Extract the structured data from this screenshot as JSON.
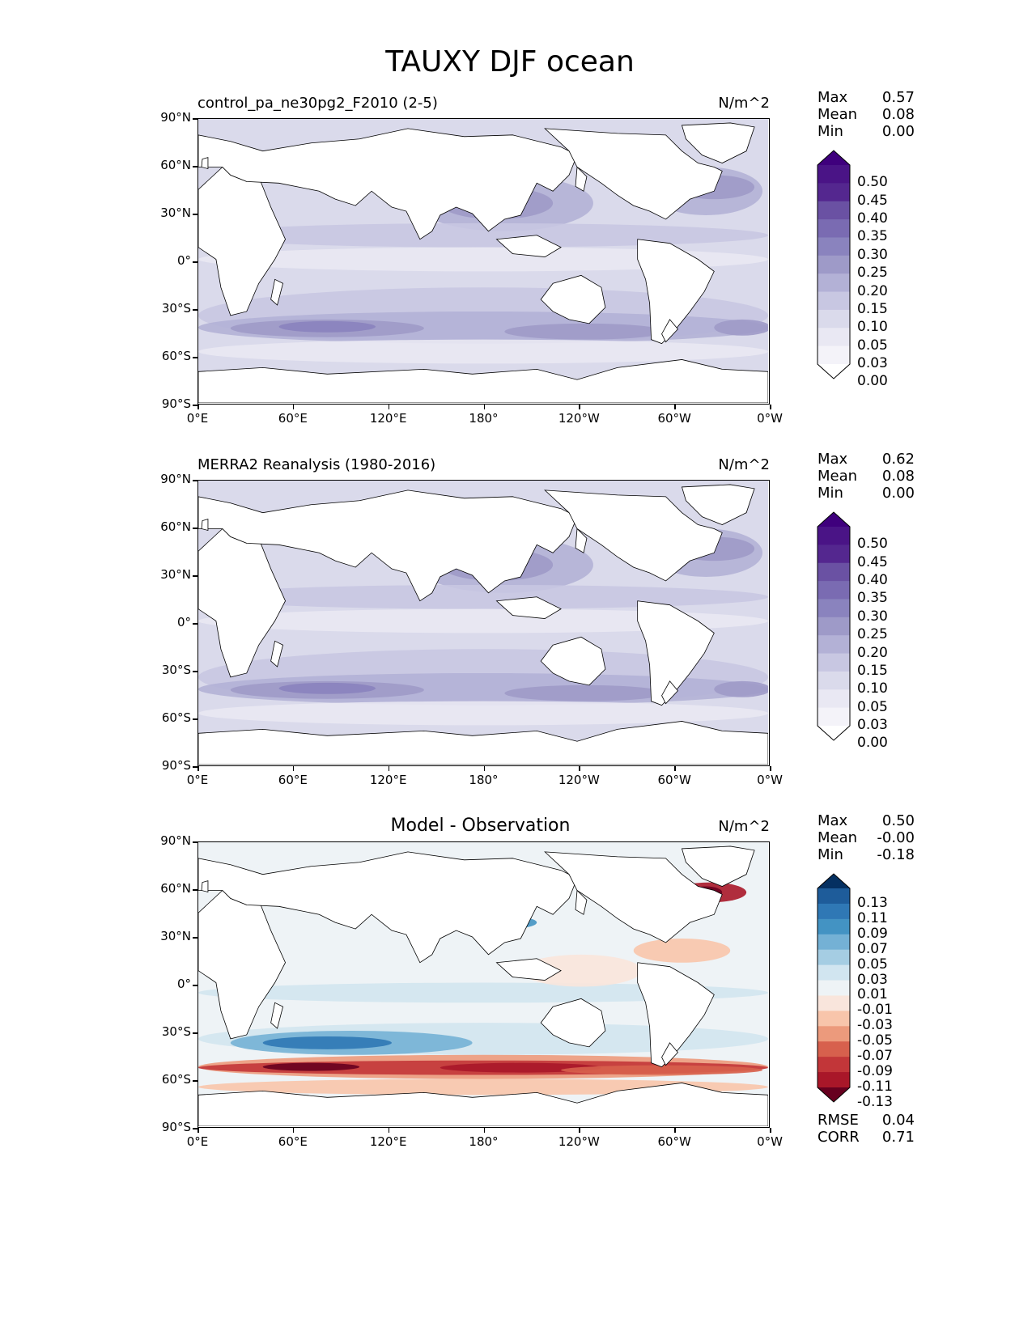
{
  "figure": {
    "title": "TAUXY DJF ocean"
  },
  "axes": {
    "y_ticks": [
      "90°N",
      "60°N",
      "30°N",
      "0°",
      "30°S",
      "60°S",
      "90°S"
    ],
    "x_ticks": [
      "0°E",
      "60°E",
      "120°E",
      "180°",
      "120°W",
      "60°W",
      "0°W"
    ]
  },
  "panels": [
    {
      "title": "control_pa_ne30pg2_F2010 (2-5)",
      "units": "N/m^2",
      "stats": [
        {
          "label": "Max",
          "value": "0.57"
        },
        {
          "label": "Mean",
          "value": "0.08"
        },
        {
          "label": "Min",
          "value": "0.00"
        }
      ],
      "colorbar": {
        "labels": [
          "0.50",
          "0.45",
          "0.40",
          "0.35",
          "0.30",
          "0.25",
          "0.20",
          "0.15",
          "0.10",
          "0.05",
          "0.03",
          "0.00"
        ],
        "colors": [
          "#3f007d",
          "#4a1486",
          "#54278f",
          "#6a51a3",
          "#7a6bb2",
          "#8a83be",
          "#9e9ac8",
          "#b3b1d6",
          "#c8c7e2",
          "#dadaeb",
          "#e9e8f3",
          "#f4f3f9",
          "#ffffff"
        ]
      },
      "colormap": "purples"
    },
    {
      "title": "MERRA2 Reanalysis (1980-2016)",
      "units": "N/m^2",
      "stats": [
        {
          "label": "Max",
          "value": "0.62"
        },
        {
          "label": "Mean",
          "value": "0.08"
        },
        {
          "label": "Min",
          "value": "0.00"
        }
      ],
      "colorbar": {
        "labels": [
          "0.50",
          "0.45",
          "0.40",
          "0.35",
          "0.30",
          "0.25",
          "0.20",
          "0.15",
          "0.10",
          "0.05",
          "0.03",
          "0.00"
        ],
        "colors": [
          "#3f007d",
          "#4a1486",
          "#54278f",
          "#6a51a3",
          "#7a6bb2",
          "#8a83be",
          "#9e9ac8",
          "#b3b1d6",
          "#c8c7e2",
          "#dadaeb",
          "#e9e8f3",
          "#f4f3f9",
          "#ffffff"
        ]
      },
      "colormap": "purples"
    },
    {
      "title": "Model - Observation",
      "units": "N/m^2",
      "stats": [
        {
          "label": "Max",
          "value": "0.50"
        },
        {
          "label": "Mean",
          "value": "-0.00"
        },
        {
          "label": "Min",
          "value": "-0.18"
        }
      ],
      "extra_stats": [
        {
          "label": "RMSE",
          "value": "0.04"
        },
        {
          "label": "CORR",
          "value": "0.71"
        }
      ],
      "colorbar": {
        "labels": [
          "0.13",
          "0.11",
          "0.09",
          "0.07",
          "0.05",
          "0.03",
          "0.01",
          "-0.01",
          "-0.03",
          "-0.05",
          "-0.07",
          "-0.09",
          "-0.11",
          "-0.13"
        ],
        "colors": [
          "#053061",
          "#1e5c9a",
          "#2f78b5",
          "#4393c3",
          "#74b1d5",
          "#a5cde3",
          "#d1e5f0",
          "#eef3f6",
          "#f9e5dc",
          "#f8c5ab",
          "#ec9a7c",
          "#d7604d",
          "#c23639",
          "#a91729",
          "#67001f"
        ]
      },
      "colormap": "rdbu"
    }
  ]
}
